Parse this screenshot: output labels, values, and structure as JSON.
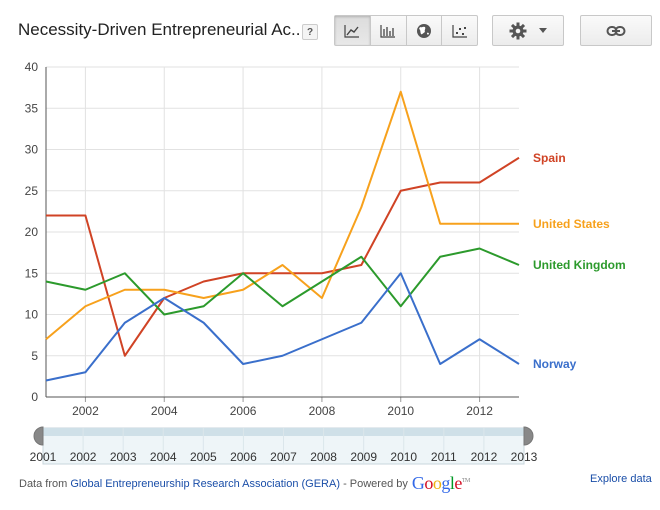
{
  "header": {
    "title": "Necessity-Driven Entrepreneurial Ac...",
    "help_label": "?",
    "chart_types": [
      {
        "name": "line",
        "icon": "line-chart-icon",
        "active": true
      },
      {
        "name": "bar",
        "icon": "bar-chart-icon",
        "active": false
      },
      {
        "name": "map",
        "icon": "globe-icon",
        "active": false
      },
      {
        "name": "scatter",
        "icon": "scatter-chart-icon",
        "active": false
      }
    ],
    "settings_icon": "gear-icon",
    "dropdown_icon": "caret-down-icon",
    "link_icon": "link-icon"
  },
  "footer": {
    "prefix": "Data from",
    "source": "Global Entrepreneurship Research Association (GERA)",
    "powered_by": "- Powered by",
    "google": "Google",
    "explore": "Explore data"
  },
  "colors": {
    "Spain": "#d04325",
    "United States": "#f7a11c",
    "United Kingdom": "#2c9a2c",
    "Norway": "#3a6fcb"
  },
  "chart_data": {
    "type": "line",
    "title": "Necessity-Driven Entrepreneurial Ac...",
    "x": [
      2001,
      2002,
      2003,
      2004,
      2005,
      2006,
      2007,
      2008,
      2009,
      2010,
      2011,
      2012,
      2013
    ],
    "x_ticks": [
      "2002",
      "2004",
      "2006",
      "2008",
      "2010",
      "2012"
    ],
    "ylim": [
      0,
      40
    ],
    "y_ticks": [
      "0",
      "5",
      "10",
      "15",
      "20",
      "25",
      "30",
      "35",
      "40"
    ],
    "grid": true,
    "legend": "right (inline end labels)",
    "series": [
      {
        "name": "Spain",
        "values": [
          22,
          22,
          5,
          12,
          14,
          15,
          15,
          15,
          16,
          25,
          26,
          26,
          29
        ]
      },
      {
        "name": "United States",
        "values": [
          7,
          11,
          13,
          13,
          12,
          13,
          16,
          12,
          23,
          37,
          21,
          21,
          21
        ]
      },
      {
        "name": "United Kingdom",
        "values": [
          14,
          13,
          15,
          10,
          11,
          15,
          11,
          14,
          17,
          11,
          17,
          18,
          16
        ]
      },
      {
        "name": "Norway",
        "values": [
          2,
          3,
          9,
          12,
          9,
          4,
          5,
          7,
          9,
          15,
          4,
          7,
          4
        ]
      }
    ],
    "slider": {
      "labels": [
        "2001",
        "2002",
        "2003",
        "2004",
        "2005",
        "2006",
        "2007",
        "2008",
        "2009",
        "2010",
        "2011",
        "2012",
        "2013"
      ],
      "start": "2001",
      "end": "2013"
    }
  }
}
